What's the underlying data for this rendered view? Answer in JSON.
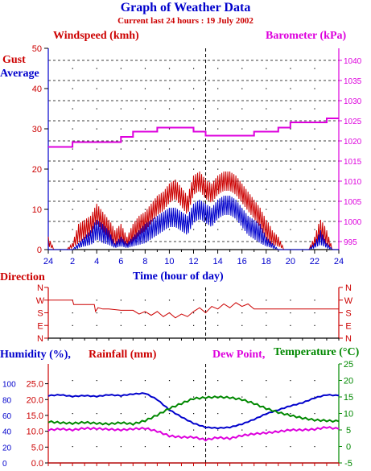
{
  "header": {
    "title": "Graph of Weather Data",
    "subtitle": "Current last 24 hours : 19 July 2002"
  },
  "chart_data": [
    {
      "type": "line",
      "panel": "wind-barometer",
      "left_title": "Windspeed (kmh)",
      "right_title": "Barometer (kPa)",
      "xlabel": "Time (hour of day)",
      "x_ticks": [
        "24",
        "2",
        "4",
        "6",
        "8",
        "10",
        "12",
        "14",
        "16",
        "18",
        "20",
        "22",
        "24"
      ],
      "ylim_left": [
        0,
        50
      ],
      "y_ticks_left": [
        0,
        10,
        20,
        30,
        40,
        50
      ],
      "ylim_right": [
        993,
        1043
      ],
      "y_ticks_right": [
        995,
        1000,
        1005,
        1010,
        1015,
        1020,
        1025,
        1030,
        1035,
        1040
      ],
      "grid": true,
      "series": [
        {
          "name": "Gust",
          "color": "#cc0000",
          "x": [
            0,
            0.5,
            1,
            1.5,
            2,
            2.5,
            3,
            3.5,
            4,
            4.5,
            5,
            5.5,
            6,
            6.5,
            7,
            7.5,
            8,
            8.5,
            9,
            9.5,
            10,
            10.5,
            11,
            11.5,
            12,
            12.5,
            13,
            13.5,
            14,
            14.5,
            15,
            15.5,
            16,
            16.5,
            17,
            17.5,
            18,
            18.5,
            19,
            19.5,
            20,
            20.5,
            21,
            21.5,
            22,
            22.5,
            23,
            23.5,
            24
          ],
          "values": [
            2,
            0,
            0,
            0,
            1,
            4,
            5,
            6,
            9,
            7,
            5,
            3,
            4,
            2,
            4,
            6,
            7,
            9,
            11,
            12,
            14,
            15,
            13,
            11,
            16,
            17,
            15,
            14,
            16,
            17,
            17,
            16,
            14,
            12,
            10,
            8,
            5,
            3,
            2,
            0,
            0,
            0,
            0,
            0,
            2,
            5,
            3,
            0,
            0
          ]
        },
        {
          "name": "Average",
          "color": "#0000cc",
          "x": [
            0,
            0.5,
            1,
            1.5,
            2,
            2.5,
            3,
            3.5,
            4,
            4.5,
            5,
            5.5,
            6,
            6.5,
            7,
            7.5,
            8,
            8.5,
            9,
            9.5,
            10,
            10.5,
            11,
            11.5,
            12,
            12.5,
            13,
            13.5,
            14,
            14.5,
            15,
            15.5,
            16,
            16.5,
            17,
            17.5,
            18,
            18.5,
            19,
            19.5,
            20,
            20.5,
            21,
            21.5,
            22,
            22.5,
            23,
            23.5,
            24
          ],
          "values": [
            0,
            0,
            0,
            0,
            0,
            1,
            2,
            3,
            5,
            4,
            3,
            1,
            2,
            1,
            2,
            3,
            4,
            5,
            6,
            7,
            8,
            8,
            7,
            6,
            9,
            10,
            9,
            8,
            10,
            11,
            11,
            10,
            8,
            6,
            5,
            4,
            2,
            1,
            0,
            0,
            0,
            0,
            0,
            0,
            1,
            3,
            1,
            0,
            0
          ]
        },
        {
          "name": "Barometer",
          "axis": "right",
          "color": "#dd00dd",
          "x": [
            0,
            2,
            2,
            6,
            6,
            7,
            7,
            9,
            9,
            12,
            12,
            13,
            13,
            17,
            17,
            19,
            19,
            20,
            20,
            23,
            23,
            24
          ],
          "values": [
            1018.5,
            1018.5,
            1019.7,
            1019.7,
            1021,
            1021,
            1022.3,
            1022.3,
            1023.3,
            1023.3,
            1022.3,
            1022.3,
            1021.3,
            1021.3,
            1022.3,
            1022.3,
            1023.3,
            1023.3,
            1024.6,
            1024.6,
            1025.6,
            1025.6
          ]
        }
      ]
    },
    {
      "type": "line",
      "panel": "direction",
      "title": "Direction",
      "y_ticks": [
        "N",
        "W",
        "S",
        "E",
        "N"
      ],
      "series": [
        {
          "name": "Direction",
          "color": "#cc0000",
          "x": [
            0,
            2,
            2.1,
            3.8,
            3.9,
            4.1,
            4.5,
            5,
            6,
            7,
            7.5,
            8,
            8.5,
            9,
            9.5,
            10,
            10.5,
            11,
            11.5,
            12,
            12.5,
            13,
            13.5,
            14,
            14.5,
            15,
            15.5,
            16,
            16.5,
            17,
            18,
            19,
            20,
            21,
            22,
            23,
            24
          ],
          "values": [
            1,
            1,
            1.35,
            1.35,
            1.9,
            1.6,
            1.7,
            1.7,
            1.8,
            1.8,
            2.1,
            1.9,
            2.2,
            1.9,
            2.3,
            2.0,
            2.4,
            2.1,
            2.3,
            1.9,
            1.6,
            2.0,
            1.5,
            1.7,
            1.3,
            1.6,
            1.2,
            1.5,
            1.3,
            1.7,
            1.7,
            1.7,
            1.7,
            1.7,
            1.7,
            1.7,
            1.7
          ]
        }
      ]
    },
    {
      "type": "line",
      "panel": "humidity-rain-temp",
      "titles": {
        "humidity": "Humidity (%),",
        "rainfall": "Rainfall (mm)",
        "dewpoint": "Dew Point,",
        "temperature": "Temperature (°C)"
      },
      "y_ticks_humidity": [
        0,
        20,
        40,
        60,
        80,
        100
      ],
      "y_ticks_rainfall": [
        "0.0",
        "5.0",
        "10.0",
        "15.0",
        "20.0",
        "25.0"
      ],
      "ylim_right": [
        -5,
        25
      ],
      "y_ticks_right": [
        -5,
        0,
        5,
        10,
        15,
        20,
        25
      ],
      "series": [
        {
          "name": "Humidity",
          "color": "#0000cc",
          "axis": "humidity",
          "ylim": [
            0,
            125
          ],
          "x": [
            0,
            1,
            2,
            3,
            4,
            5,
            6,
            7,
            8,
            9,
            10,
            11,
            12,
            13,
            14,
            15,
            16,
            17,
            18,
            19,
            20,
            21,
            22,
            23,
            24
          ],
          "values": [
            85,
            86,
            84,
            85,
            84,
            86,
            85,
            87,
            88,
            80,
            67,
            58,
            50,
            45,
            44,
            45,
            49,
            55,
            62,
            67,
            72,
            76,
            82,
            86,
            85
          ]
        },
        {
          "name": "Rainfall",
          "color": "#cc0000",
          "axis": "rainfall",
          "ylim": [
            0,
            31.25
          ],
          "x": [
            0,
            24
          ],
          "values": [
            0,
            0
          ]
        },
        {
          "name": "Dew Point",
          "color": "#dd00dd",
          "axis": "right",
          "x": [
            0,
            1,
            2,
            3,
            4,
            5,
            6,
            7,
            8,
            9,
            10,
            11,
            12,
            13,
            14,
            15,
            16,
            17,
            18,
            19,
            20,
            21,
            22,
            23,
            24
          ],
          "values": [
            5.0,
            5.3,
            5.0,
            5.5,
            5.4,
            5.2,
            5.0,
            5.3,
            5.5,
            4.6,
            3.2,
            2.8,
            2.8,
            2.0,
            2.7,
            2.4,
            3.3,
            3.8,
            4.1,
            4.5,
            5.0,
            5.0,
            5.2,
            5.8,
            5.3
          ]
        },
        {
          "name": "Temperature",
          "color": "#008800",
          "axis": "right",
          "x": [
            0,
            1,
            2,
            3,
            4,
            5,
            6,
            7,
            8,
            9,
            10,
            11,
            12,
            13,
            14,
            15,
            16,
            17,
            18,
            19,
            20,
            21,
            22,
            23,
            24
          ],
          "values": [
            7.5,
            7.2,
            7.0,
            7.3,
            7.0,
            6.8,
            7.2,
            6.8,
            7.8,
            9.5,
            11.5,
            13.0,
            14.5,
            14.8,
            15.0,
            14.8,
            14.2,
            13.0,
            11.5,
            10.3,
            9.4,
            8.6,
            8.0,
            7.8,
            7.6
          ]
        }
      ]
    }
  ]
}
